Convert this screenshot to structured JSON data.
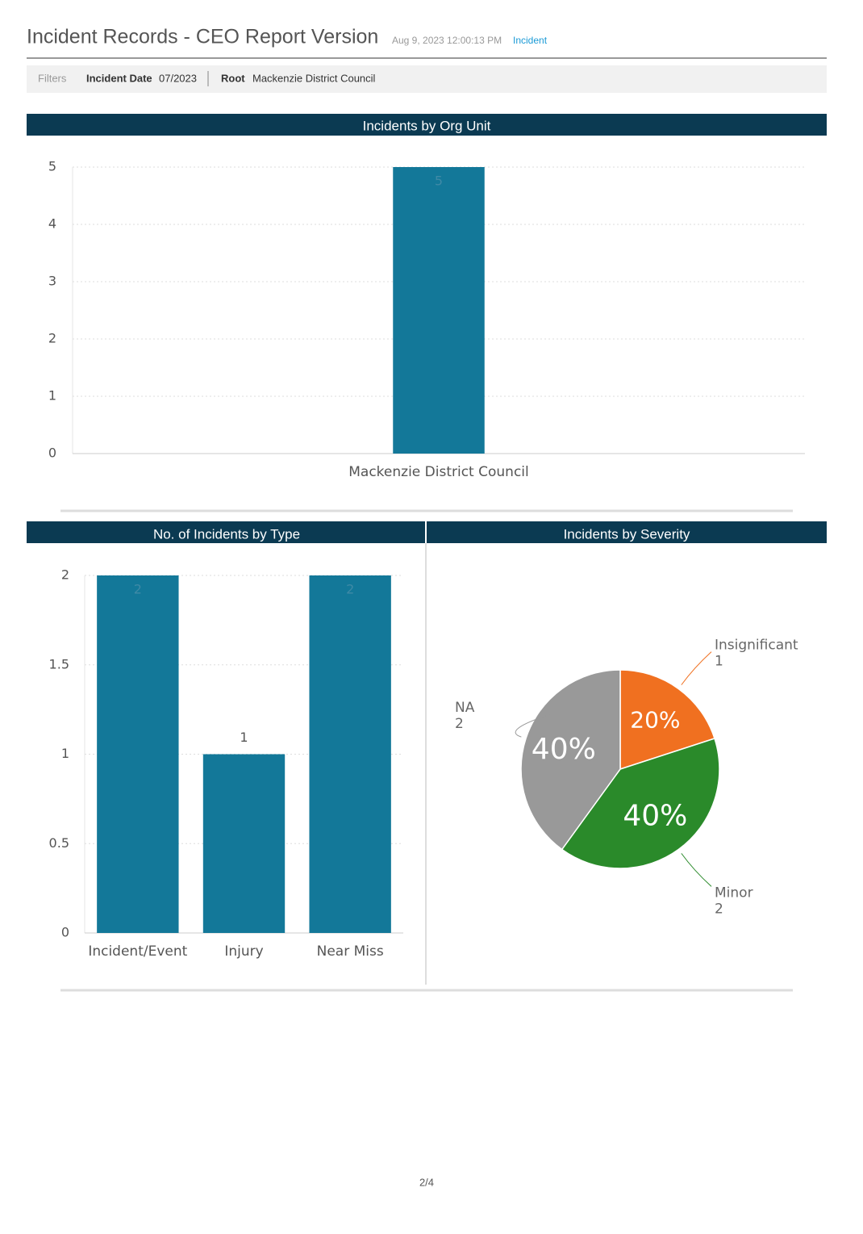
{
  "header": {
    "title": "Incident Records - CEO Report Version",
    "timestamp": "Aug 9, 2023 12:00:13 PM",
    "link": "Incident"
  },
  "filters": {
    "label": "Filters",
    "items": [
      {
        "name": "Incident Date",
        "value": "07/2023"
      },
      {
        "name": "Root",
        "value": "Mackenzie District Council"
      }
    ]
  },
  "chart_data": [
    {
      "type": "bar",
      "title": "Incidents by Org Unit",
      "categories": [
        "Mackenzie District Council"
      ],
      "values": [
        5
      ],
      "color": "#137899",
      "ylim": [
        0,
        5
      ],
      "yticks": [
        0,
        1,
        2,
        3,
        4,
        5
      ],
      "grid": true
    },
    {
      "type": "bar",
      "title": "No. of Incidents by Type",
      "categories": [
        "Incident/Event",
        "Injury",
        "Near Miss"
      ],
      "values": [
        2,
        1,
        2
      ],
      "color": "#137899",
      "ylim": [
        0,
        2
      ],
      "yticks": [
        0,
        0.5,
        1,
        1.5,
        2
      ],
      "grid": true
    },
    {
      "type": "pie",
      "title": "Incidents by Severity",
      "categories": [
        "Insignificant",
        "Minor",
        "NA"
      ],
      "values": [
        20,
        40,
        40
      ],
      "value_labels": [
        "20%",
        "40%",
        "40%"
      ],
      "counts": [
        1,
        2,
        2
      ],
      "colors": [
        "#f07020",
        "#2a8a2a",
        "#999999"
      ]
    }
  ],
  "footer": {
    "page": "2/4"
  }
}
